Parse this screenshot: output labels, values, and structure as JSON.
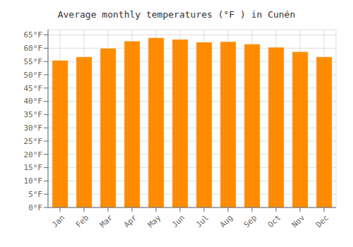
{
  "chart_data": {
    "type": "bar",
    "title": "Average monthly temperatures (°F ) in Cunén",
    "categories": [
      "Jan",
      "Feb",
      "Mar",
      "Apr",
      "May",
      "Jun",
      "Jul",
      "Aug",
      "Sep",
      "Oct",
      "Nov",
      "Dec"
    ],
    "values": [
      55.4,
      56.7,
      59.9,
      62.6,
      63.9,
      63.3,
      62.2,
      62.4,
      61.5,
      60.3,
      58.6,
      56.7
    ],
    "color": "#FF8C00",
    "ylim": [
      0,
      67
    ],
    "yticks": [
      {
        "value": 0,
        "label": "0°F"
      },
      {
        "value": 5,
        "label": "5°F"
      },
      {
        "value": 10,
        "label": "10°F"
      },
      {
        "value": 15,
        "label": "15°F"
      },
      {
        "value": 20,
        "label": "20°F"
      },
      {
        "value": 25,
        "label": "25°F"
      },
      {
        "value": 30,
        "label": "30°F"
      },
      {
        "value": 35,
        "label": "35°F"
      },
      {
        "value": 40,
        "label": "40°F"
      },
      {
        "value": 45,
        "label": "45°F"
      },
      {
        "value": 50,
        "label": "50°F"
      },
      {
        "value": 55,
        "label": "55°F"
      },
      {
        "value": 60,
        "label": "60°F"
      },
      {
        "value": 65,
        "label": "65°F"
      }
    ],
    "grid": true
  }
}
